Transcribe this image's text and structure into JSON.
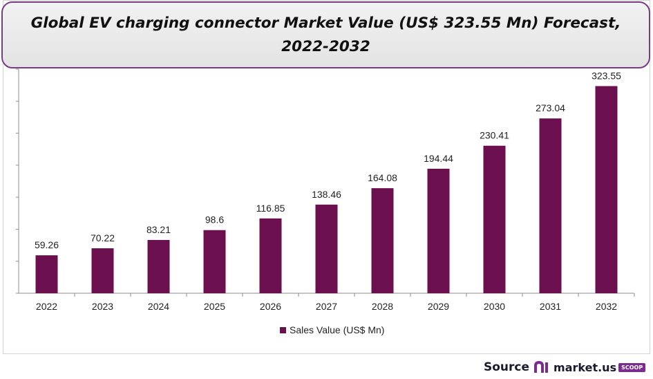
{
  "title": "Global EV charging connector Market Value (US$ 323.55 Mn) Forecast, 2022-2032",
  "colors": {
    "bar": "#6b0f4f",
    "title_border": "#7a3a85"
  },
  "chart_data": {
    "type": "bar",
    "title": "Global EV charging connector Market Value (US$ 323.55 Mn) Forecast, 2022-2032",
    "categories": [
      "2022",
      "2023",
      "2024",
      "2025",
      "2026",
      "2027",
      "2028",
      "2029",
      "2030",
      "2031",
      "2032"
    ],
    "series": [
      {
        "name": "Sales Value (US$ Mn)",
        "values": [
          59.26,
          70.22,
          83.21,
          98.6,
          116.85,
          138.46,
          164.08,
          194.44,
          230.41,
          273.04,
          323.55
        ],
        "labels": [
          "59.26",
          "70.22",
          "83.21",
          "98.6",
          "116.85",
          "138.46",
          "164.08",
          "194.44",
          "230.41",
          "273.04",
          "323.55"
        ]
      }
    ],
    "ylim": [
      0,
      350
    ],
    "xlabel": "",
    "ylabel": "",
    "grid": false,
    "legend": "bottom"
  },
  "footer": {
    "source_label": "Source",
    "logo_text": "market.us",
    "logo_badge": "SCOOP"
  }
}
